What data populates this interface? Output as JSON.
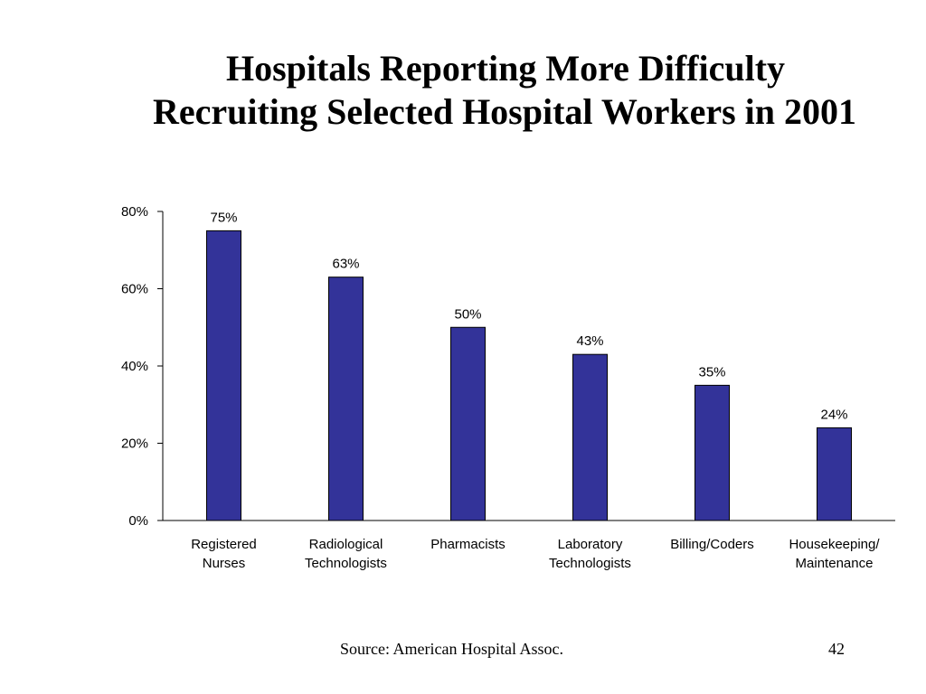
{
  "slide": {
    "title_line_1": "Hospitals Reporting More Difficulty",
    "title_line_2": "Recruiting Selected Hospital Workers in 2001",
    "source": "Source: American Hospital Assoc.",
    "page_number": "42"
  },
  "chart_data": {
    "type": "bar",
    "categories": [
      [
        "Registered",
        "Nurses"
      ],
      [
        "Radiological",
        "Technologists"
      ],
      [
        "Pharmacists"
      ],
      [
        "Laboratory",
        "Technologists"
      ],
      [
        "Billing/Coders"
      ],
      [
        "Housekeeping/",
        "Maintenance"
      ]
    ],
    "values": [
      75,
      63,
      50,
      43,
      35,
      24
    ],
    "data_labels": [
      "75%",
      "63%",
      "50%",
      "43%",
      "35%",
      "24%"
    ],
    "ylim": [
      0,
      80
    ],
    "yticks": [
      0,
      20,
      40,
      60,
      80
    ],
    "ytick_labels": [
      "0%",
      "20%",
      "40%",
      "60%",
      "80%"
    ],
    "grid": false,
    "legend": "none",
    "colors": {
      "bar": "#333399",
      "bar_outline": "#000000",
      "axis": "#000000"
    }
  }
}
